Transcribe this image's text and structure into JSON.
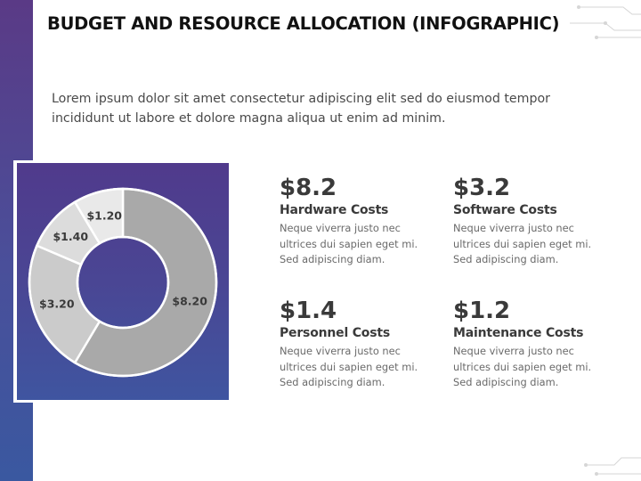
{
  "header": {
    "title": "BUDGET AND RESOURCE ALLOCATION (INFOGRAPHIC)"
  },
  "intro": {
    "text": "Lorem ipsum dolor sit amet consectetur adipiscing elit sed do eiusmod tempor incididunt ut labore et dolore magna aliqua ut enim ad minim."
  },
  "stats": [
    {
      "value": "$8.2",
      "label": "Hardware Costs",
      "desc": "Neque viverra justo nec ultrices dui sapien eget mi. Sed adipiscing diam."
    },
    {
      "value": "$3.2",
      "label": "Software Costs",
      "desc": "Neque viverra justo nec ultrices dui sapien eget mi. Sed adipiscing diam."
    },
    {
      "value": "$1.4",
      "label": "Personnel Costs",
      "desc": "Neque viverra justo nec ultrices dui sapien eget mi. Sed adipiscing diam."
    },
    {
      "value": "$1.2",
      "label": "Maintenance Costs",
      "desc": "Neque viverra justo nec ultrices dui sapien eget mi. Sed adipiscing diam."
    }
  ],
  "chart_data": {
    "type": "pie",
    "donut": true,
    "categories": [
      "Hardware Costs",
      "Software Costs",
      "Personnel Costs",
      "Maintenance Costs"
    ],
    "values": [
      8.2,
      3.2,
      1.4,
      1.2
    ],
    "data_labels": [
      "$8.20",
      "$3.20",
      "$1.40",
      "$1.20"
    ],
    "colors": [
      "#a9a9a9",
      "#cbcbcb",
      "#dcdcdc",
      "#e9e9e9"
    ],
    "legend": "none"
  },
  "theme": {
    "accent_purple": "#503a8c",
    "accent_blue": "#3f55a0"
  }
}
